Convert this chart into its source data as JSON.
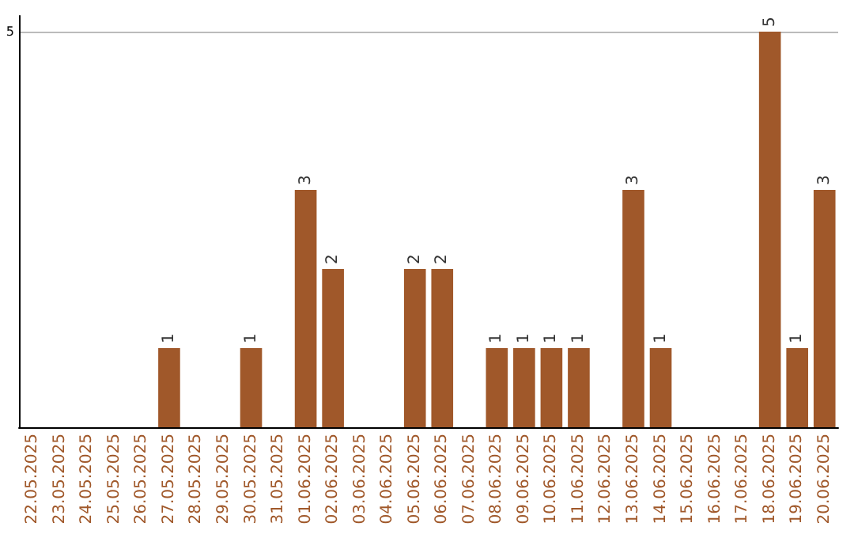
{
  "chart_data": {
    "type": "bar",
    "categories": [
      "22.05.2025",
      "23.05.2025",
      "24.05.2025",
      "25.05.2025",
      "26.05.2025",
      "27.05.2025",
      "28.05.2025",
      "29.05.2025",
      "30.05.2025",
      "31.05.2025",
      "01.06.2025",
      "02.06.2025",
      "03.06.2025",
      "04.06.2025",
      "05.06.2025",
      "06.06.2025",
      "07.06.2025",
      "08.06.2025",
      "09.06.2025",
      "10.06.2025",
      "11.06.2025",
      "12.06.2025",
      "13.06.2025",
      "14.06.2025",
      "15.06.2025",
      "16.06.2025",
      "17.06.2025",
      "18.06.2025",
      "19.06.2025",
      "20.06.2025"
    ],
    "values": [
      0,
      0,
      0,
      0,
      0,
      1,
      0,
      0,
      1,
      0,
      3,
      2,
      0,
      0,
      2,
      2,
      0,
      1,
      1,
      1,
      1,
      0,
      3,
      1,
      0,
      0,
      0,
      5,
      1,
      3
    ],
    "value_labels": [
      null,
      null,
      null,
      null,
      null,
      "1",
      null,
      null,
      "1",
      null,
      "3",
      "2",
      null,
      null,
      "2",
      "2",
      null,
      "1",
      "1",
      "1",
      "1",
      null,
      "3",
      "1",
      null,
      null,
      null,
      "5",
      "1",
      "3"
    ],
    "color": "#a0582a",
    "ylim": [
      0,
      5.2
    ],
    "yticks": [
      5
    ],
    "grid": "y"
  }
}
